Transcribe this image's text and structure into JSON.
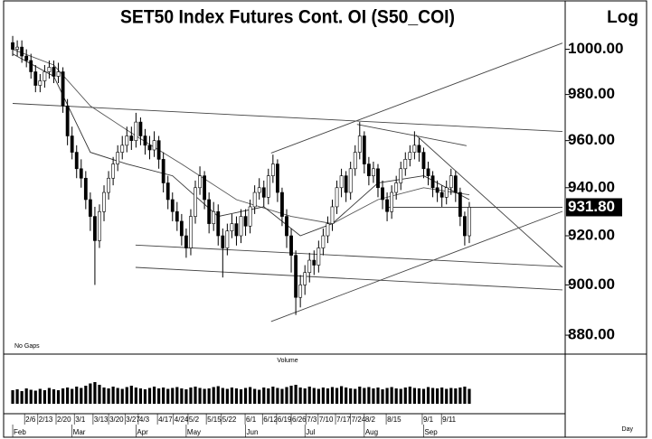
{
  "chart_data": {
    "type": "candlestick",
    "title": "SET50 Index Futures Cont. OI (S50_COI)",
    "log_scale": true,
    "log_label": "Log",
    "no_gaps_label": "No Gaps",
    "volume_label": "Volume",
    "x_unit_label": "Day",
    "ylim": [
      874,
      1019
    ],
    "yticks": [
      {
        "value": 880,
        "label": "880.00"
      },
      {
        "value": 900,
        "label": "900.00"
      },
      {
        "value": 920,
        "label": "920.00"
      },
      {
        "value": 940,
        "label": "940.00"
      },
      {
        "value": 960,
        "label": "960.00"
      },
      {
        "value": 980,
        "label": "980.00"
      },
      {
        "value": 1000,
        "label": "1000.00"
      }
    ],
    "last": {
      "value": 931.8,
      "label": "931.80"
    },
    "xlim": [
      -0.8,
      121
    ],
    "xticks": [
      {
        "value": 2.6,
        "label": "2/6"
      },
      {
        "value": 5.5,
        "label": "2/13"
      },
      {
        "value": 9.5,
        "label": "2/20"
      },
      {
        "value": 13.5,
        "label": "3/1"
      },
      {
        "value": 17.6,
        "label": "3/13"
      },
      {
        "value": 21,
        "label": "3/20"
      },
      {
        "value": 24.6,
        "label": "3/27"
      },
      {
        "value": 27.5,
        "label": "4/3"
      },
      {
        "value": 31.7,
        "label": "4/17"
      },
      {
        "value": 35.2,
        "label": "4/24"
      },
      {
        "value": 38.4,
        "label": "5/2"
      },
      {
        "value": 42.4,
        "label": "5/15"
      },
      {
        "value": 45.7,
        "label": "5/22"
      },
      {
        "value": 50.9,
        "label": "6/1"
      },
      {
        "value": 54.7,
        "label": "6/12"
      },
      {
        "value": 57.8,
        "label": "6/19"
      },
      {
        "value": 61,
        "label": "6/26"
      },
      {
        "value": 64.2,
        "label": "7/3"
      },
      {
        "value": 66.9,
        "label": "7/10"
      },
      {
        "value": 70.7,
        "label": "7/17"
      },
      {
        "value": 74,
        "label": "7/24"
      },
      {
        "value": 77,
        "label": "8/2"
      },
      {
        "value": 81.8,
        "label": "8/15"
      },
      {
        "value": 89.7,
        "label": "9/1"
      },
      {
        "value": 93.9,
        "label": "9/11"
      }
    ],
    "month_ticks": [
      {
        "value": 0,
        "label": "Feb"
      },
      {
        "value": 13,
        "label": "Mar"
      },
      {
        "value": 27,
        "label": "Apr"
      },
      {
        "value": 38,
        "label": "May"
      },
      {
        "value": 51,
        "label": "Jun"
      },
      {
        "value": 64,
        "label": "Jul"
      },
      {
        "value": 77,
        "label": "Aug"
      },
      {
        "value": 90,
        "label": "Sep"
      }
    ],
    "color": "#000000",
    "open": [
      1003,
      1000,
      1001,
      997,
      995,
      990,
      984,
      986,
      990,
      992,
      988,
      990,
      975,
      962,
      955,
      948,
      944,
      935,
      928,
      918,
      930,
      938,
      944,
      950,
      955,
      958,
      962,
      960,
      968,
      962,
      958,
      956,
      960,
      952,
      942,
      935,
      930,
      926,
      920,
      915,
      928,
      940,
      945,
      935,
      925,
      930,
      920,
      915,
      922,
      925,
      920,
      928,
      924,
      932,
      938,
      940,
      936,
      945,
      950,
      938,
      928,
      920,
      912,
      895,
      900,
      905,
      910,
      908,
      915,
      920,
      925,
      932,
      940,
      945,
      938,
      948,
      955,
      962,
      950,
      945,
      948,
      940,
      935,
      930,
      938,
      942,
      948,
      952,
      955,
      958,
      955,
      948,
      945,
      940,
      938,
      936,
      940,
      945,
      938,
      928,
      920
    ],
    "high": [
      1006,
      1004,
      1004,
      1000,
      998,
      993,
      989,
      993,
      995,
      995,
      994,
      992,
      978,
      966,
      958,
      952,
      947,
      938,
      932,
      933,
      941,
      947,
      953,
      958,
      962,
      966,
      966,
      972,
      970,
      965,
      962,
      964,
      962,
      955,
      945,
      938,
      934,
      929,
      923,
      931,
      943,
      949,
      947,
      938,
      934,
      933,
      923,
      925,
      929,
      928,
      931,
      931,
      935,
      941,
      944,
      943,
      948,
      954,
      952,
      940,
      931,
      923,
      914,
      904,
      908,
      913,
      914,
      918,
      923,
      928,
      935,
      943,
      948,
      947,
      951,
      958,
      968,
      964,
      953,
      951,
      950,
      943,
      938,
      941,
      945,
      951,
      955,
      958,
      964,
      961,
      957,
      951,
      947,
      943,
      941,
      943,
      948,
      947,
      940,
      930,
      934
    ],
    "low": [
      997,
      997,
      994,
      992,
      987,
      981,
      981,
      983,
      987,
      985,
      985,
      972,
      958,
      952,
      944,
      940,
      931,
      922,
      900,
      915,
      926,
      935,
      941,
      947,
      952,
      955,
      956,
      957,
      958,
      954,
      952,
      953,
      948,
      938,
      931,
      926,
      922,
      916,
      911,
      912,
      925,
      937,
      931,
      921,
      922,
      916,
      903,
      912,
      919,
      916,
      917,
      920,
      921,
      929,
      935,
      932,
      933,
      942,
      934,
      924,
      915,
      905,
      888,
      891,
      896,
      901,
      904,
      905,
      912,
      917,
      922,
      929,
      936,
      934,
      935,
      945,
      952,
      946,
      941,
      942,
      936,
      931,
      926,
      927,
      935,
      939,
      945,
      949,
      952,
      951,
      944,
      941,
      936,
      934,
      932,
      933,
      937,
      934,
      924,
      916,
      917
    ],
    "close": [
      1000,
      1001,
      997,
      995,
      990,
      984,
      986,
      990,
      992,
      988,
      990,
      975,
      962,
      955,
      948,
      944,
      935,
      928,
      918,
      930,
      938,
      944,
      950,
      955,
      958,
      962,
      960,
      968,
      962,
      958,
      956,
      960,
      952,
      942,
      935,
      930,
      926,
      920,
      915,
      928,
      940,
      945,
      935,
      925,
      930,
      920,
      915,
      922,
      925,
      920,
      928,
      924,
      932,
      938,
      940,
      936,
      945,
      950,
      938,
      928,
      920,
      912,
      895,
      900,
      905,
      910,
      908,
      915,
      920,
      925,
      932,
      940,
      945,
      938,
      948,
      955,
      962,
      950,
      945,
      948,
      940,
      935,
      930,
      938,
      942,
      948,
      952,
      955,
      958,
      955,
      948,
      945,
      940,
      938,
      936,
      940,
      945,
      938,
      928,
      920,
      931.8
    ],
    "volume": [
      30,
      32,
      28,
      34,
      31,
      29,
      33,
      30,
      35,
      32,
      30,
      34,
      36,
      33,
      38,
      35,
      40,
      45,
      48,
      42,
      36,
      34,
      38,
      35,
      33,
      37,
      40,
      36,
      34,
      32,
      35,
      38,
      34,
      36,
      33,
      35,
      37,
      34,
      32,
      36,
      38,
      35,
      33,
      34,
      37,
      39,
      35,
      33,
      36,
      34,
      32,
      35,
      37,
      33,
      31,
      36,
      34,
      38,
      35,
      33,
      37,
      40,
      42,
      36,
      34,
      38,
      35,
      33,
      36,
      34,
      37,
      35,
      39,
      36,
      34,
      33,
      38,
      35,
      37,
      34,
      36,
      32,
      35,
      37,
      34,
      33,
      36,
      38,
      35,
      34,
      33,
      37,
      35,
      34,
      36,
      33,
      35,
      34,
      36,
      38,
      33
    ],
    "volume_ylim": [
      0,
      100
    ],
    "moving_averages": [
      {
        "color": "#555555",
        "x": [
          0,
          9,
          17,
          27,
          37,
          49,
          61,
          70,
          80,
          90,
          100
        ],
        "values": [
          1000,
          993,
          975,
          962,
          950,
          935,
          928,
          925,
          935,
          940,
          937
        ]
      },
      {
        "color": "#333333",
        "x": [
          0,
          9,
          17,
          25,
          35,
          45,
          55,
          63,
          70,
          80,
          90,
          100
        ],
        "values": [
          998,
          988,
          955,
          950,
          945,
          928,
          932,
          920,
          925,
          942,
          945,
          935
        ]
      }
    ],
    "trendlines": [
      {
        "color": "#444444",
        "x": [
          56.6,
          120.4
        ],
        "values": [
          954.7,
          1002.8
        ]
      },
      {
        "color": "#444444",
        "x": [
          56.6,
          120.4
        ],
        "values": [
          885.4,
          930.1
        ]
      },
      {
        "color": "#444444",
        "x": [
          0,
          120.4
        ],
        "values": [
          976.1,
          963.9
        ]
      },
      {
        "color": "#444444",
        "x": [
          26.9,
          120.4
        ],
        "values": [
          916.2,
          907.4
        ]
      },
      {
        "color": "#444444",
        "x": [
          26.9,
          120.4
        ],
        "values": [
          907.1,
          898.0
        ]
      },
      {
        "color": "#444444",
        "x": [
          75.4,
          99.4
        ],
        "values": [
          967.0,
          957.8
        ]
      },
      {
        "color": "#444444",
        "x": [
          88.3,
          120.4
        ],
        "values": [
          962.4,
          907.1
        ]
      },
      {
        "color": "#444444",
        "x": [
          82.4,
          120.4
        ],
        "values": [
          931.8,
          931.8
        ]
      }
    ]
  }
}
